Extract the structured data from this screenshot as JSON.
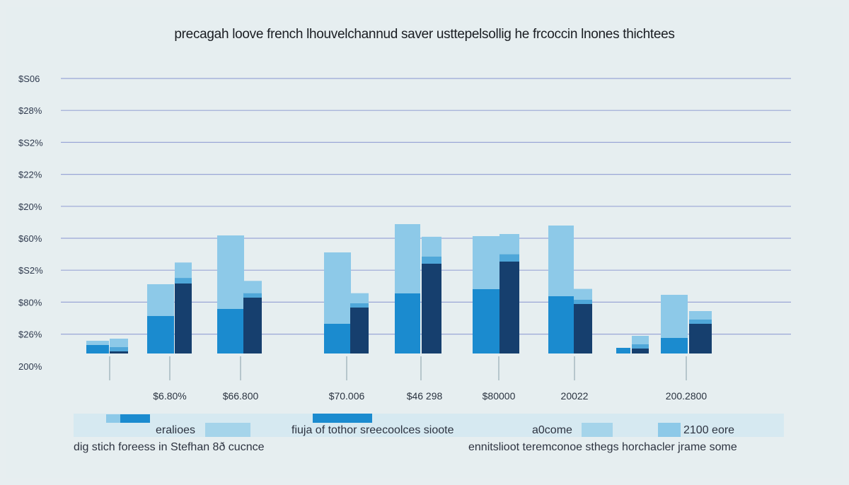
{
  "chart_data": {
    "type": "bar",
    "title": "precagah loove french lhouvelchannud saver usttepelsollig he frcoccin lnones thichtees",
    "y_ticks": [
      "$S06",
      "$28%",
      "$S2%",
      "$22%",
      "$20%",
      "$60%",
      "$S2%",
      "$80%",
      "$26%",
      "200%"
    ],
    "x_labels": [
      "$6.80%",
      "$66.800",
      "$70.006",
      "$46 298",
      "$80000",
      "20022",
      "200.2800"
    ],
    "groups": [
      {
        "light": 18,
        "medium": 12,
        "dark": 3
      },
      {
        "light": 98,
        "medium": 53,
        "dark": 99
      },
      {
        "light": 167,
        "medium": 63,
        "dark": 79
      },
      {
        "light": 143,
        "medium": 42,
        "dark": 65
      },
      {
        "light": 183,
        "medium": 85,
        "dark": 127
      },
      {
        "light": 166,
        "medium": 91,
        "dark": 130
      },
      {
        "light": 181,
        "medium": 81,
        "dark": 70
      },
      {
        "light": 8,
        "medium": 8,
        "dark": 7
      },
      {
        "light": 83,
        "medium": 22,
        "dark": 42
      }
    ],
    "ylim": [
      0,
      210
    ],
    "grid": true,
    "colors": {
      "light": "#8dc9e8",
      "medium": "#1b8bcf",
      "dark": "#163f6e",
      "pale": "#c9e3ee"
    },
    "legend_texts": {
      "left_top": "eralioes",
      "left_bottom": "dig stich  foreess in Stefhan 8ð cucnce",
      "mid_top": "fiuja of tothor  sreecoolces sioote",
      "right_top_a": "a0come",
      "right_top_b": "2100 eore",
      "right_bottom": "ennitslioot  teremconoe sthegs horchacler jrame some"
    }
  }
}
